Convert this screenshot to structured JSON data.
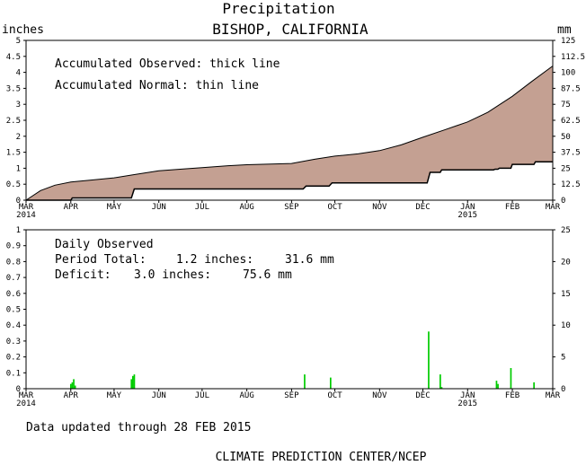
{
  "header": {
    "title": "Precipitation",
    "station": "BISHOP, CALIFORNIA",
    "left_unit": "inches",
    "right_unit": "mm"
  },
  "footer": {
    "updated": "Data updated through 28 FEB 2015",
    "credit": "CLIMATE PREDICTION CENTER/NCEP"
  },
  "colors": {
    "fill": "#c4a092",
    "bar": "#00cc00",
    "axis": "#000000"
  },
  "chart_data": [
    {
      "type": "area",
      "annotations": [
        "Accumulated Observed: thick line",
        "Accumulated Normal: thin line"
      ],
      "x_unit": "days since 1 MAR 2014",
      "x_range": [
        0,
        365
      ],
      "months": [
        {
          "label": "MAR",
          "day": 0,
          "year": "2014"
        },
        {
          "label": "APR",
          "day": 31
        },
        {
          "label": "MAY",
          "day": 61
        },
        {
          "label": "JUN",
          "day": 92
        },
        {
          "label": "JUL",
          "day": 122
        },
        {
          "label": "AUG",
          "day": 153
        },
        {
          "label": "SEP",
          "day": 184
        },
        {
          "label": "OCT",
          "day": 214
        },
        {
          "label": "NOV",
          "day": 245
        },
        {
          "label": "DEC",
          "day": 275
        },
        {
          "label": "JAN",
          "day": 306,
          "year": "2015"
        },
        {
          "label": "FEB",
          "day": 337
        },
        {
          "label": "MAR",
          "day": 365
        }
      ],
      "ylim_inches": [
        0,
        5
      ],
      "y_ticks_inches": [
        "0",
        "0.5",
        "1",
        "1.5",
        "2",
        "2.5",
        "3",
        "3.5",
        "4",
        "4.5",
        "5"
      ],
      "ylim_mm": [
        0,
        125
      ],
      "y_ticks_mm": [
        "0",
        "12.5",
        "25",
        "37.5",
        "50",
        "62.5",
        "75",
        "87.5",
        "100",
        "112.5",
        "125"
      ],
      "series": [
        {
          "name": "Accumulated Normal",
          "points": [
            [
              0,
              0
            ],
            [
              10,
              0.3
            ],
            [
              20,
              0.47
            ],
            [
              31,
              0.57
            ],
            [
              45,
              0.63
            ],
            [
              61,
              0.7
            ],
            [
              75,
              0.8
            ],
            [
              92,
              0.92
            ],
            [
              110,
              0.98
            ],
            [
              122,
              1.02
            ],
            [
              140,
              1.08
            ],
            [
              153,
              1.11
            ],
            [
              170,
              1.13
            ],
            [
              184,
              1.15
            ],
            [
              200,
              1.28
            ],
            [
              214,
              1.38
            ],
            [
              230,
              1.45
            ],
            [
              245,
              1.55
            ],
            [
              260,
              1.73
            ],
            [
              275,
              1.97
            ],
            [
              290,
              2.2
            ],
            [
              306,
              2.45
            ],
            [
              320,
              2.75
            ],
            [
              337,
              3.25
            ],
            [
              350,
              3.7
            ],
            [
              365,
              4.2
            ]
          ]
        },
        {
          "name": "Accumulated Observed",
          "points": [
            [
              0,
              0
            ],
            [
              31,
              0
            ],
            [
              32,
              0.07
            ],
            [
              73,
              0.07
            ],
            [
              75,
              0.35
            ],
            [
              192,
              0.35
            ],
            [
              194,
              0.44
            ],
            [
              210,
              0.44
            ],
            [
              212,
              0.54
            ],
            [
              278,
              0.54
            ],
            [
              280,
              0.87
            ],
            [
              287,
              0.87
            ],
            [
              288,
              0.95
            ],
            [
              324,
              0.95
            ],
            [
              325,
              0.97
            ],
            [
              327,
              0.97
            ],
            [
              328,
              1.0
            ],
            [
              333,
              1.0
            ],
            [
              334,
              1.0
            ],
            [
              336,
              1.0
            ],
            [
              337,
              1.12
            ],
            [
              352,
              1.12
            ],
            [
              353,
              1.2
            ],
            [
              365,
              1.2
            ]
          ]
        }
      ]
    },
    {
      "type": "bar",
      "annotations": {
        "heading": "Daily Observed",
        "total_label": "Period Total:",
        "total_inches": "1.2 inches:",
        "total_mm": "31.6 mm",
        "deficit_label": "Deficit:",
        "deficit_inches": "3.0 inches:",
        "deficit_mm": "75.6 mm"
      },
      "ylim_inches": [
        0,
        1
      ],
      "y_ticks_inches": [
        "0",
        "0.1",
        "0.2",
        "0.3",
        "0.4",
        "0.5",
        "0.6",
        "0.7",
        "0.8",
        "0.9",
        "1"
      ],
      "ylim_mm": [
        0,
        25
      ],
      "y_ticks_mm": [
        "0",
        "5",
        "10",
        "15",
        "20",
        "25"
      ],
      "bars": [
        {
          "day": 31,
          "value": 0.03
        },
        {
          "day": 32,
          "value": 0.04
        },
        {
          "day": 33,
          "value": 0.06
        },
        {
          "day": 34,
          "value": 0.02
        },
        {
          "day": 73,
          "value": 0.06
        },
        {
          "day": 74,
          "value": 0.08
        },
        {
          "day": 75,
          "value": 0.09
        },
        {
          "day": 193,
          "value": 0.09
        },
        {
          "day": 211,
          "value": 0.07
        },
        {
          "day": 279,
          "value": 0.36
        },
        {
          "day": 287,
          "value": 0.09
        },
        {
          "day": 288,
          "value": 0.01
        },
        {
          "day": 326,
          "value": 0.05
        },
        {
          "day": 327,
          "value": 0.03
        },
        {
          "day": 336,
          "value": 0.13
        },
        {
          "day": 352,
          "value": 0.04
        }
      ]
    }
  ]
}
